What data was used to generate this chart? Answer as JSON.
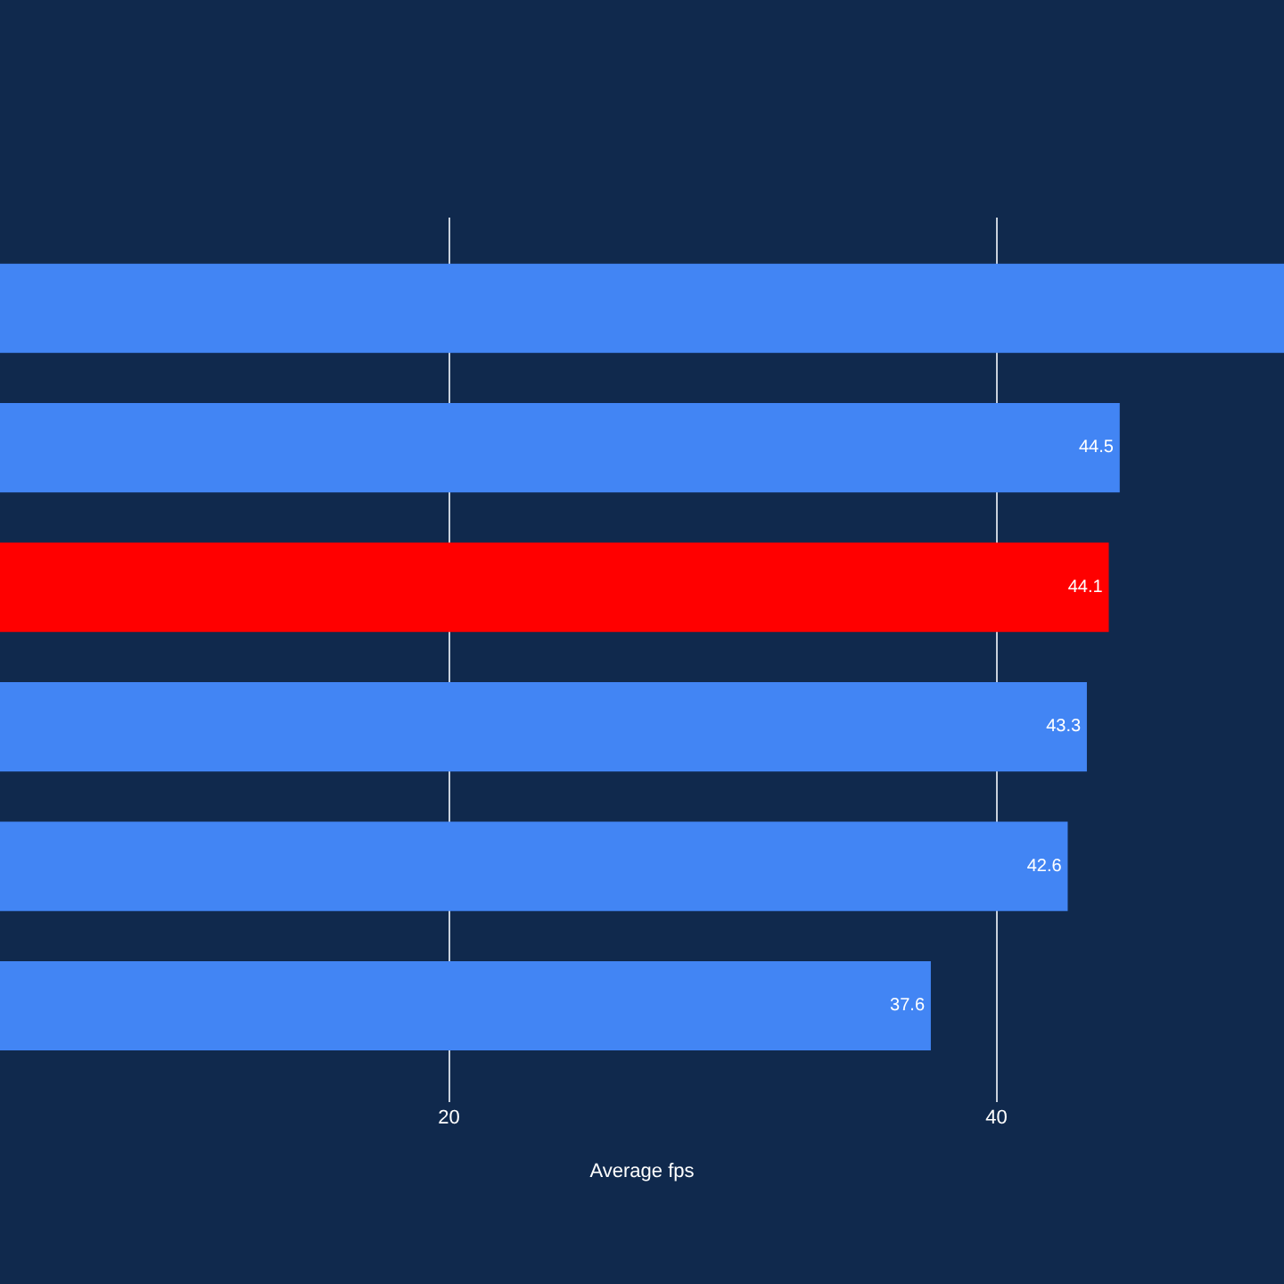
{
  "chart_data": {
    "type": "bar",
    "orientation": "horizontal",
    "xlabel": "Average fps",
    "categories": [
      null,
      null,
      null,
      null,
      null,
      null
    ],
    "values": [
      50.5,
      44.5,
      44.1,
      43.3,
      42.6,
      37.6
    ],
    "colors": [
      "#4285f4",
      "#4285f4",
      "#ff0000",
      "#4285f4",
      "#4285f4",
      "#4285f4"
    ],
    "value_labels": [
      null,
      "44.5",
      "44.1",
      "43.3",
      "42.6",
      "37.6"
    ],
    "xlim": [
      3.6,
      50.5
    ],
    "xticks": [
      20,
      40
    ],
    "grid": "x"
  }
}
